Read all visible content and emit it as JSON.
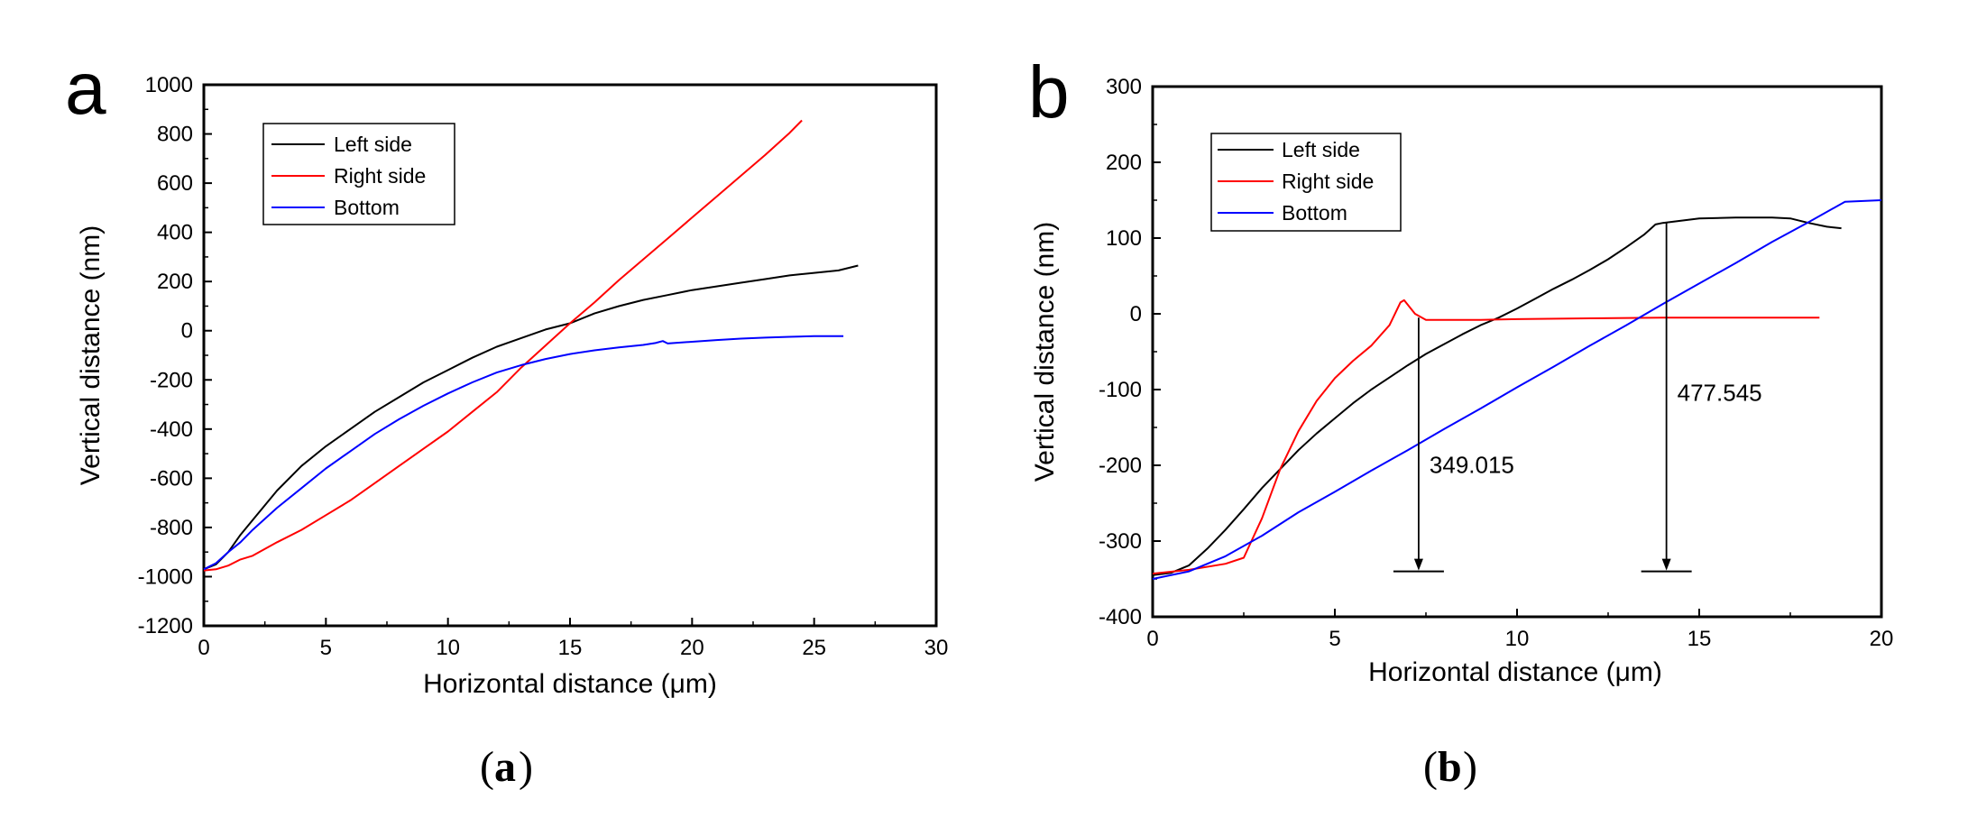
{
  "chart_data": [
    {
      "type": "line",
      "panel_label": "a",
      "caption_letter": "a",
      "xlabel": "Horizontal distance (μm)",
      "ylabel": "Vertical distance (nm)",
      "xlim": [
        0,
        30
      ],
      "ylim": [
        -1200,
        1000
      ],
      "xticks": [
        0,
        5,
        10,
        15,
        20,
        25,
        30
      ],
      "yticks": [
        -1200,
        -1000,
        -800,
        -600,
        -400,
        -200,
        0,
        200,
        400,
        600,
        800,
        1000
      ],
      "legend": [
        "Left side",
        "Right side",
        "Bottom"
      ],
      "series": [
        {
          "name": "Left side",
          "color": "#000000",
          "x": [
            0,
            0.5,
            1,
            1.5,
            2,
            3,
            4,
            5,
            6,
            7,
            8,
            9,
            10,
            11,
            12,
            13,
            14,
            15,
            16,
            17,
            18,
            19,
            20,
            21,
            22,
            23,
            24,
            25,
            26,
            26.8
          ],
          "y": [
            -970,
            -950,
            -900,
            -830,
            -770,
            -650,
            -550,
            -470,
            -400,
            -330,
            -270,
            -210,
            -160,
            -110,
            -65,
            -30,
            5,
            30,
            70,
            100,
            125,
            145,
            165,
            180,
            195,
            210,
            225,
            235,
            245,
            265
          ]
        },
        {
          "name": "Right side",
          "color": "#ff0000",
          "x": [
            0,
            0.5,
            1,
            1.5,
            2,
            3,
            4,
            5,
            6,
            7,
            8,
            9,
            10,
            11,
            12,
            13,
            14,
            15,
            16,
            17,
            18,
            19,
            20,
            21,
            22,
            23,
            24,
            24.5
          ],
          "y": [
            -975,
            -970,
            -955,
            -930,
            -915,
            -860,
            -810,
            -750,
            -690,
            -620,
            -550,
            -480,
            -410,
            -330,
            -250,
            -150,
            -60,
            30,
            115,
            205,
            290,
            375,
            460,
            545,
            630,
            715,
            805,
            855
          ]
        },
        {
          "name": "Bottom",
          "color": "#0000ff",
          "x": [
            0,
            0.5,
            1,
            1.5,
            2,
            3,
            4,
            5,
            6,
            7,
            8,
            9,
            10,
            11,
            12,
            13,
            14,
            15,
            16,
            17,
            18,
            18.5,
            18.8,
            19,
            20,
            21,
            22,
            23,
            24,
            25,
            26.2
          ],
          "y": [
            -970,
            -945,
            -900,
            -860,
            -810,
            -720,
            -640,
            -560,
            -490,
            -420,
            -360,
            -305,
            -255,
            -210,
            -170,
            -140,
            -115,
            -95,
            -80,
            -68,
            -58,
            -50,
            -42,
            -52,
            -45,
            -38,
            -32,
            -28,
            -25,
            -22,
            -22
          ]
        }
      ]
    },
    {
      "type": "line",
      "panel_label": "b",
      "caption_letter": "b",
      "xlabel": "Horizontal distance (μm)",
      "ylabel": "Vertical distance (nm)",
      "xlim": [
        0,
        20
      ],
      "ylim": [
        -400,
        300
      ],
      "xticks": [
        0,
        5,
        10,
        15,
        20
      ],
      "yticks": [
        -400,
        -300,
        -200,
        -100,
        0,
        100,
        200,
        300
      ],
      "legend": [
        "Left side",
        "Right side",
        "Bottom"
      ],
      "series": [
        {
          "name": "Left side",
          "color": "#000000",
          "x": [
            0,
            0.5,
            1,
            1.5,
            2,
            2.5,
            3,
            3.5,
            4,
            4.5,
            5,
            5.5,
            6,
            6.5,
            7,
            7.5,
            8,
            8.5,
            9,
            9.5,
            10,
            10.5,
            11,
            11.5,
            12,
            12.5,
            13,
            13.5,
            13.8,
            14,
            15,
            16,
            17,
            17.5,
            18,
            18.5,
            18.9
          ],
          "y": [
            -345,
            -342,
            -332,
            -310,
            -285,
            -258,
            -230,
            -205,
            -180,
            -158,
            -138,
            -118,
            -100,
            -84,
            -68,
            -53,
            -40,
            -27,
            -15,
            -5,
            7,
            20,
            33,
            45,
            58,
            72,
            88,
            105,
            118,
            120,
            126,
            127,
            127,
            126,
            120,
            115,
            113
          ]
        },
        {
          "name": "Right side",
          "color": "#ff0000",
          "x": [
            0,
            1,
            2,
            2.5,
            3,
            3.5,
            4,
            4.5,
            5,
            5.5,
            6,
            6.5,
            6.8,
            6.9,
            7.2,
            7.5,
            8,
            9,
            10,
            12,
            14,
            16,
            18.3
          ],
          "y": [
            -343,
            -338,
            -330,
            -322,
            -270,
            -205,
            -155,
            -115,
            -85,
            -62,
            -42,
            -15,
            15,
            18,
            0,
            -8,
            -8,
            -8,
            -7,
            -6,
            -5,
            -5,
            -5
          ]
        },
        {
          "name": "Bottom",
          "color": "#0000ff",
          "x": [
            0,
            1,
            2,
            3,
            4,
            5,
            6,
            7,
            8,
            9,
            10,
            11,
            12,
            13,
            14,
            15,
            16,
            17,
            18,
            19,
            20
          ],
          "y": [
            -350,
            -340,
            -320,
            -293,
            -262,
            -235,
            -207,
            -180,
            -152,
            -125,
            -97,
            -70,
            -42,
            -15,
            13,
            40,
            67,
            95,
            121,
            148,
            150
          ]
        }
      ],
      "annotations": [
        {
          "text": "349.015",
          "x": 7.3,
          "from": -5,
          "to": -340
        },
        {
          "text": "477.545",
          "x": 14.1,
          "from": 120,
          "to": -340
        }
      ]
    }
  ]
}
